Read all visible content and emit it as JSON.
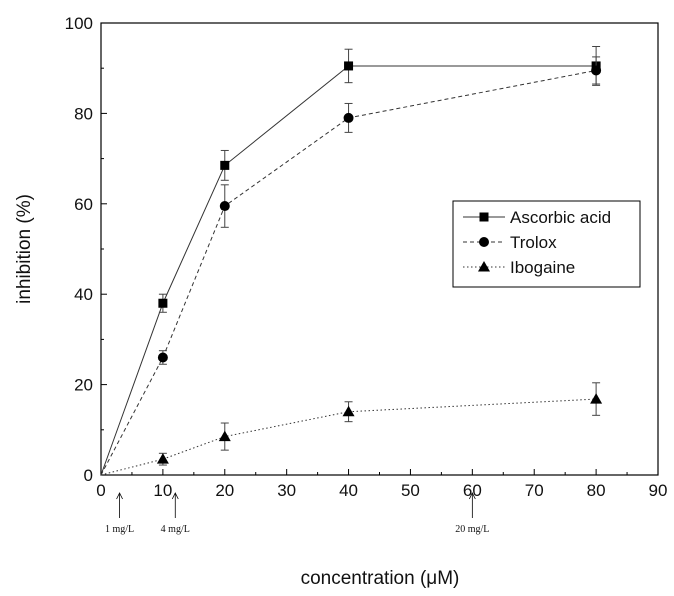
{
  "chart_data": {
    "type": "line",
    "xlabel": "concentration (μM)",
    "ylabel": "inhibition (%)",
    "xlim": [
      0,
      90
    ],
    "ylim": [
      0,
      100
    ],
    "x_ticks": [
      0,
      10,
      20,
      30,
      40,
      50,
      60,
      70,
      80,
      90
    ],
    "y_ticks": [
      0,
      20,
      40,
      60,
      80,
      100
    ],
    "grid": false,
    "legend_position": "right",
    "series": [
      {
        "name": "Ascorbic acid",
        "marker": "square",
        "line_style": "solid",
        "x": [
          0,
          10,
          20,
          40,
          80
        ],
        "y": [
          0,
          38,
          68.5,
          90.5,
          90.5
        ],
        "error": [
          0,
          2,
          3.3,
          3.7,
          4.3
        ]
      },
      {
        "name": "Trolox",
        "marker": "circle",
        "line_style": "dashed",
        "x": [
          0,
          10,
          20,
          40,
          80
        ],
        "y": [
          0,
          26,
          59.5,
          79,
          89.5
        ],
        "error": [
          0,
          1.5,
          4.7,
          3.2,
          3
        ]
      },
      {
        "name": "Ibogaine",
        "marker": "triangle",
        "line_style": "dotted",
        "x": [
          0,
          10,
          20,
          40,
          80
        ],
        "y": [
          0,
          3.5,
          8.5,
          14,
          16.8
        ],
        "error": [
          0,
          1.3,
          3,
          2.2,
          3.6
        ]
      }
    ],
    "annotations": [
      {
        "label": "1 mg/L",
        "x": 3
      },
      {
        "label": "4 mg/L",
        "x": 12
      },
      {
        "label": "20 mg/L",
        "x": 60
      }
    ]
  }
}
